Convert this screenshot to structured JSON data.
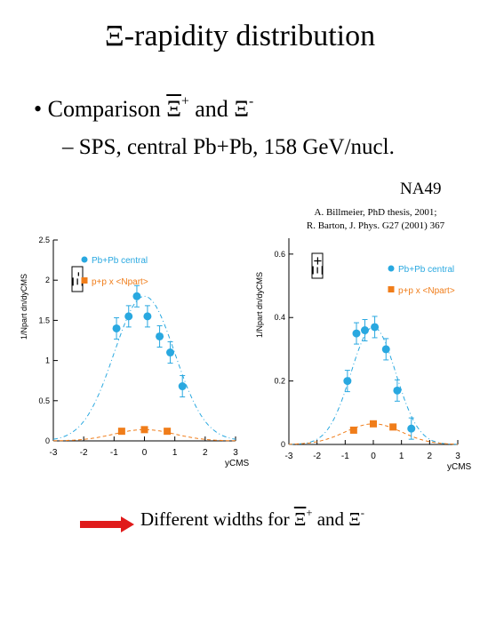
{
  "slide": {
    "title": "Ξ-rapidity distribution",
    "bullet_marker": "•",
    "bullet_text": "Comparison",
    "xi_symbol": "Ξ",
    "plus_sign": "+",
    "minus_sign": "-",
    "and_word": "and",
    "subbullet": "– SPS, central Pb+Pb, 158 GeV/nucl.",
    "experiment": "NA49",
    "reference_line1": "A. Billmeier, PhD thesis, 2001;",
    "reference_line2": "R. Barton,  J. Phys. G27 (2001) 367",
    "footer_text": "Different widths for",
    "footer_and": "and"
  },
  "colors": {
    "pbpb": "#29a8e0",
    "pp": "#f07d1a",
    "arrow": "#e01b1b"
  },
  "chart_data": [
    {
      "type": "scatter",
      "panel_label": "Ξ-",
      "ylabel": "1/Npart dn/dyCMS",
      "xlabel": "yCMS",
      "xlim": [
        -3,
        3
      ],
      "ylim": [
        0,
        2.5
      ],
      "xticks": [
        "-3",
        "-2",
        "-1",
        "0",
        "1",
        "2",
        "3"
      ],
      "yticks": [
        "0",
        "0.5",
        "1",
        "1.5",
        "2",
        "2.5"
      ],
      "legend": [
        "Pb+Pb central",
        "p+p x <Npart>"
      ],
      "series": [
        {
          "name": "Pb+Pb central",
          "points": [
            [
              -0.92,
              1.4
            ],
            [
              -0.52,
              1.55
            ],
            [
              -0.25,
              1.8
            ],
            [
              0.1,
              1.55
            ],
            [
              0.5,
              1.3
            ],
            [
              0.85,
              1.1
            ],
            [
              1.25,
              0.68
            ]
          ]
        },
        {
          "name": "p+p x <Npart>",
          "points": [
            [
              -0.75,
              0.12
            ],
            [
              0.0,
              0.14
            ],
            [
              0.75,
              0.12
            ]
          ]
        }
      ]
    },
    {
      "type": "scatter",
      "panel_label": "Ξ+",
      "ylabel": "1/Npart dn/dyCMS",
      "xlabel": "yCMS",
      "xlim": [
        -3,
        3
      ],
      "ylim": [
        0,
        0.65
      ],
      "xticks": [
        "-3",
        "-2",
        "-1",
        "0",
        "1",
        "2",
        "3"
      ],
      "yticks": [
        "0",
        "0.2",
        "0.4",
        "0.6"
      ],
      "legend": [
        "Pb+Pb central",
        "p+p x <Npart>"
      ],
      "series": [
        {
          "name": "Pb+Pb central",
          "points": [
            [
              -0.92,
              0.2
            ],
            [
              -0.6,
              0.35
            ],
            [
              -0.3,
              0.36
            ],
            [
              0.05,
              0.37
            ],
            [
              0.45,
              0.3
            ],
            [
              0.85,
              0.17
            ],
            [
              1.35,
              0.05
            ]
          ]
        },
        {
          "name": "p+p x <Npart>",
          "points": [
            [
              -0.7,
              0.045
            ],
            [
              0.0,
              0.065
            ],
            [
              0.7,
              0.055
            ]
          ]
        }
      ]
    }
  ]
}
